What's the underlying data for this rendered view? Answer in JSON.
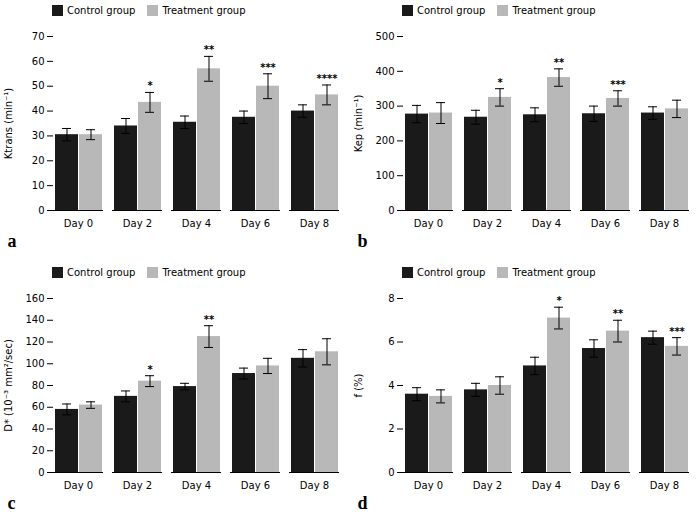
{
  "chart_data": [
    {
      "type": "bar",
      "title": "a",
      "categories": [
        "Day 0",
        "Day 2",
        "Day 4",
        "Day 6",
        "Day 8"
      ],
      "series": [
        {
          "name": "Control group",
          "color": "#1a1a1a",
          "values": [
            30.5,
            34.0,
            35.5,
            37.5,
            40.0
          ],
          "errors": [
            2.5,
            3.0,
            2.5,
            2.5,
            2.5
          ]
        },
        {
          "name": "Treatment group",
          "color": "#b8b8b8",
          "values": [
            30.5,
            43.5,
            57.0,
            50.0,
            46.5
          ],
          "errors": [
            2.0,
            4.0,
            5.0,
            5.0,
            4.0
          ]
        }
      ],
      "annotations": [
        {
          "category": "Day 2",
          "series": "Treatment group",
          "text": "*"
        },
        {
          "category": "Day 4",
          "series": "Treatment group",
          "text": "**"
        },
        {
          "category": "Day 6",
          "series": "Treatment group",
          "text": "***"
        },
        {
          "category": "Day 8",
          "series": "Treatment group",
          "text": "****"
        }
      ],
      "ylabel": "Ktrans (min⁻¹)",
      "ylim": [
        0,
        70
      ],
      "yticks": [
        0,
        10,
        20,
        30,
        40,
        50,
        60,
        70
      ],
      "legend": "upper left"
    },
    {
      "type": "bar",
      "title": "b",
      "categories": [
        "Day 0",
        "Day 2",
        "Day 4",
        "Day 6",
        "Day 8"
      ],
      "series": [
        {
          "name": "Control group",
          "color": "#1a1a1a",
          "values": [
            277,
            268,
            275,
            278,
            280
          ],
          "errors": [
            25,
            20,
            20,
            22,
            18
          ]
        },
        {
          "name": "Treatment group",
          "color": "#b8b8b8",
          "values": [
            280,
            325,
            382,
            322,
            292
          ],
          "errors": [
            30,
            25,
            25,
            22,
            25
          ]
        }
      ],
      "annotations": [
        {
          "category": "Day 2",
          "series": "Treatment group",
          "text": "*"
        },
        {
          "category": "Day 4",
          "series": "Treatment group",
          "text": "**"
        },
        {
          "category": "Day 6",
          "series": "Treatment group",
          "text": "***"
        }
      ],
      "ylabel": "Kep (min⁻¹)",
      "ylim": [
        0,
        500
      ],
      "yticks": [
        0,
        100,
        200,
        300,
        400,
        500
      ],
      "legend": "upper left"
    },
    {
      "type": "bar",
      "title": "c",
      "categories": [
        "Day 0",
        "Day 2",
        "Day 4",
        "Day 6",
        "Day 8"
      ],
      "series": [
        {
          "name": "Control group",
          "color": "#1a1a1a",
          "values": [
            58,
            70,
            79,
            91,
            105
          ],
          "errors": [
            5.0,
            5.0,
            3.0,
            5.0,
            8.0
          ]
        },
        {
          "name": "Treatment group",
          "color": "#b8b8b8",
          "values": [
            62,
            84,
            125,
            98,
            111
          ],
          "errors": [
            3.0,
            5.0,
            10.0,
            7.0,
            12.0
          ]
        }
      ],
      "annotations": [
        {
          "category": "Day 2",
          "series": "Treatment group",
          "text": "*"
        },
        {
          "category": "Day 4",
          "series": "Treatment group",
          "text": "**"
        }
      ],
      "ylabel": "D* (10⁻³ mm²/sec)",
      "ylim": [
        0,
        160
      ],
      "yticks": [
        0,
        20,
        40,
        60,
        80,
        100,
        120,
        140,
        160
      ],
      "legend": "upper left"
    },
    {
      "type": "bar",
      "title": "d",
      "categories": [
        "Day 0",
        "Day 2",
        "Day 4",
        "Day 6",
        "Day 8"
      ],
      "series": [
        {
          "name": "Control group",
          "color": "#1a1a1a",
          "values": [
            3.6,
            3.8,
            4.9,
            5.7,
            6.2
          ],
          "errors": [
            0.3,
            0.3,
            0.4,
            0.4,
            0.3
          ]
        },
        {
          "name": "Treatment group",
          "color": "#b8b8b8",
          "values": [
            3.5,
            4.0,
            7.1,
            6.5,
            5.8
          ],
          "errors": [
            0.3,
            0.4,
            0.5,
            0.5,
            0.4
          ]
        }
      ],
      "annotations": [
        {
          "category": "Day 4",
          "series": "Treatment group",
          "text": "*"
        },
        {
          "category": "Day 6",
          "series": "Treatment group",
          "text": "**"
        },
        {
          "category": "Day 8",
          "series": "Treatment group",
          "text": "***"
        }
      ],
      "ylabel": "f (%)",
      "ylim": [
        0,
        8
      ],
      "yticks": [
        0,
        2,
        4,
        6,
        8
      ],
      "legend": "upper left"
    }
  ]
}
